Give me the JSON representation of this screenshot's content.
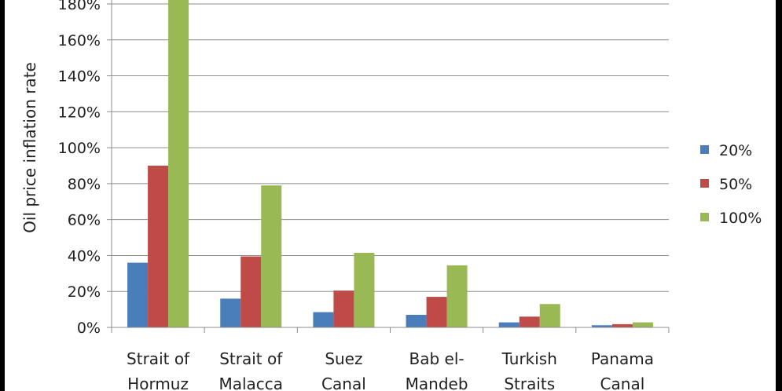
{
  "chart_data": {
    "type": "bar",
    "title": "",
    "xlabel": "",
    "ylabel": "Oil price inflation rate",
    "ylim": [
      0,
      180
    ],
    "yticks": [
      "0%",
      "20%",
      "40%",
      "60%",
      "80%",
      "100%",
      "120%",
      "140%",
      "160%",
      "180%"
    ],
    "grid": true,
    "legend_position": "right",
    "categories": [
      [
        "Strait of",
        "Hormuz"
      ],
      [
        "Strait of",
        "Malacca"
      ],
      [
        "Suez",
        "Canal"
      ],
      [
        "Bab el-",
        "Mandeb"
      ],
      [
        "Turkish",
        "Straits"
      ],
      [
        "Panama",
        "Canal"
      ]
    ],
    "series": [
      {
        "name": "20%",
        "color": "#4a7ebb",
        "values": [
          36,
          16,
          8.5,
          7,
          2.8,
          1.2
        ]
      },
      {
        "name": "50%",
        "color": "#be4b48",
        "values": [
          90,
          39.5,
          20.5,
          17,
          6,
          1.8
        ]
      },
      {
        "name": "100%",
        "color": "#98b954",
        "values": [
          185,
          79,
          41.5,
          34.5,
          13,
          2.8
        ]
      }
    ]
  }
}
